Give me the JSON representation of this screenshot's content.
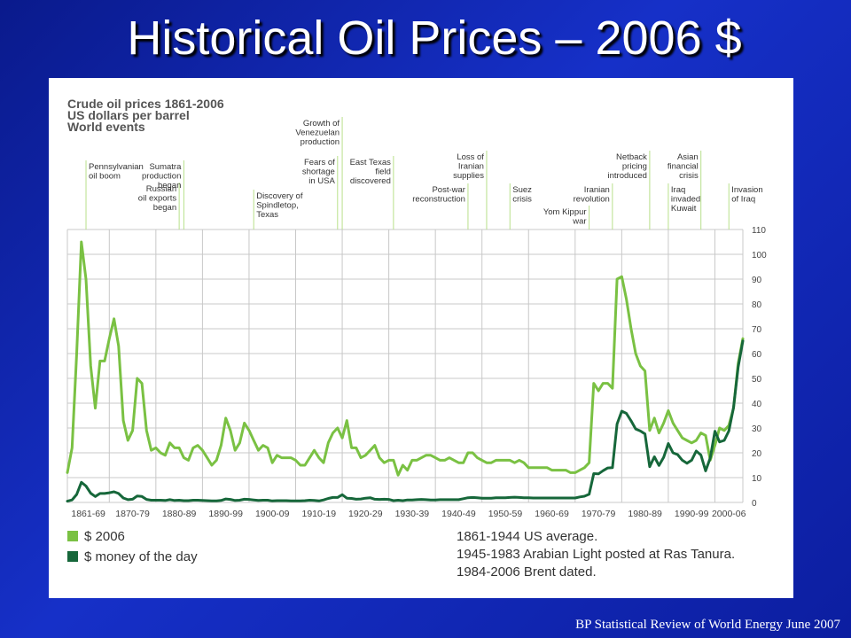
{
  "slide": {
    "title": "Historical Oil Prices – 2006 $",
    "footer": "BP Statistical Review of World Energy June 2007"
  },
  "chart_data": {
    "type": "line",
    "title_lines": [
      "Crude oil prices 1861-2006",
      "US dollars per barrel",
      "World events"
    ],
    "ylim": [
      0,
      110
    ],
    "y_ticks": [
      0,
      10,
      20,
      30,
      40,
      50,
      60,
      70,
      80,
      90,
      100,
      110
    ],
    "x_range": [
      1861,
      2006
    ],
    "x_tick_labels": [
      "1861-69",
      "1870-79",
      "1880-89",
      "1890-99",
      "1900-09",
      "1910-19",
      "1920-29",
      "1930-39",
      "1940-49",
      "1950-59",
      "1960-69",
      "1970-79",
      "1980-89",
      "1990-99",
      "2000-06"
    ],
    "series": [
      {
        "name": "$ 2006",
        "color": "#7ac143",
        "x": [
          1861,
          1862,
          1863,
          1864,
          1865,
          1866,
          1867,
          1868,
          1869,
          1870,
          1871,
          1872,
          1873,
          1874,
          1875,
          1876,
          1877,
          1878,
          1879,
          1880,
          1881,
          1882,
          1883,
          1884,
          1885,
          1886,
          1887,
          1888,
          1889,
          1890,
          1891,
          1892,
          1893,
          1894,
          1895,
          1896,
          1897,
          1898,
          1899,
          1900,
          1901,
          1902,
          1903,
          1904,
          1905,
          1906,
          1907,
          1908,
          1909,
          1910,
          1911,
          1912,
          1913,
          1914,
          1915,
          1916,
          1917,
          1918,
          1919,
          1920,
          1921,
          1922,
          1923,
          1924,
          1925,
          1926,
          1927,
          1928,
          1929,
          1930,
          1931,
          1932,
          1933,
          1934,
          1935,
          1936,
          1937,
          1938,
          1939,
          1940,
          1941,
          1942,
          1943,
          1944,
          1945,
          1946,
          1947,
          1948,
          1949,
          1950,
          1951,
          1952,
          1953,
          1954,
          1955,
          1956,
          1957,
          1958,
          1959,
          1960,
          1961,
          1962,
          1963,
          1964,
          1965,
          1966,
          1967,
          1968,
          1969,
          1970,
          1971,
          1972,
          1973,
          1974,
          1975,
          1976,
          1977,
          1978,
          1979,
          1980,
          1981,
          1982,
          1983,
          1984,
          1985,
          1986,
          1987,
          1988,
          1989,
          1990,
          1991,
          1992,
          1993,
          1994,
          1995,
          1996,
          1997,
          1998,
          1999,
          2000,
          2001,
          2002,
          2003,
          2004,
          2005,
          2006
        ],
        "values": [
          12,
          22,
          60,
          105,
          90,
          55,
          38,
          57,
          57,
          66,
          74,
          63,
          33,
          25,
          29,
          50,
          48,
          29,
          21,
          22,
          20,
          19,
          24,
          22,
          22,
          18,
          17,
          22,
          23,
          21,
          18,
          15,
          17,
          23,
          34,
          29,
          21,
          24,
          32,
          29,
          25,
          21,
          23,
          22,
          16,
          19,
          18,
          18,
          18,
          17,
          15,
          15,
          18,
          21,
          18,
          16,
          24,
          28,
          30,
          26,
          33,
          22,
          22,
          18,
          19,
          21,
          23,
          18,
          16,
          17,
          17,
          11,
          15,
          13,
          17,
          17,
          18,
          19,
          19,
          18,
          17,
          17,
          18,
          17,
          16,
          16,
          20,
          20,
          18,
          17,
          16,
          16,
          17,
          17,
          17,
          17,
          16,
          17,
          16,
          14,
          14,
          14,
          14,
          14,
          13,
          13,
          13,
          13,
          12,
          12,
          13,
          14,
          16,
          48,
          45,
          48,
          48,
          46,
          90,
          91,
          82,
          70,
          60,
          55,
          53,
          29,
          34,
          28,
          32,
          37,
          32,
          29,
          26,
          25,
          24,
          25,
          28,
          27,
          17,
          23,
          30,
          29,
          31,
          38,
          56,
          66
        ]
      },
      {
        "name": "$ money of the day",
        "color": "#16673a",
        "x": [
          1861,
          1862,
          1863,
          1864,
          1865,
          1866,
          1867,
          1868,
          1869,
          1870,
          1871,
          1872,
          1873,
          1874,
          1875,
          1876,
          1877,
          1878,
          1879,
          1880,
          1881,
          1882,
          1883,
          1884,
          1885,
          1886,
          1887,
          1888,
          1889,
          1890,
          1891,
          1892,
          1893,
          1894,
          1895,
          1896,
          1897,
          1898,
          1899,
          1900,
          1901,
          1902,
          1903,
          1904,
          1905,
          1906,
          1907,
          1908,
          1909,
          1910,
          1911,
          1912,
          1913,
          1914,
          1915,
          1916,
          1917,
          1918,
          1919,
          1920,
          1921,
          1922,
          1923,
          1924,
          1925,
          1926,
          1927,
          1928,
          1929,
          1930,
          1931,
          1932,
          1933,
          1934,
          1935,
          1936,
          1937,
          1938,
          1939,
          1940,
          1941,
          1942,
          1943,
          1944,
          1945,
          1946,
          1947,
          1948,
          1949,
          1950,
          1951,
          1952,
          1953,
          1954,
          1955,
          1956,
          1957,
          1958,
          1959,
          1960,
          1961,
          1962,
          1963,
          1964,
          1965,
          1966,
          1967,
          1968,
          1969,
          1970,
          1971,
          1972,
          1973,
          1974,
          1975,
          1976,
          1977,
          1978,
          1979,
          1980,
          1981,
          1982,
          1983,
          1984,
          1985,
          1986,
          1987,
          1988,
          1989,
          1990,
          1991,
          1992,
          1993,
          1994,
          1995,
          1996,
          1997,
          1998,
          1999,
          2000,
          2001,
          2002,
          2003,
          2004,
          2005,
          2006
        ],
        "values": [
          0.5,
          1,
          3.2,
          8.1,
          6.6,
          3.7,
          2.4,
          3.6,
          3.6,
          3.9,
          4.3,
          3.6,
          1.8,
          1.1,
          1.3,
          2.6,
          2.4,
          1.2,
          0.9,
          0.9,
          0.9,
          0.8,
          1.1,
          0.8,
          0.9,
          0.7,
          0.7,
          0.9,
          0.9,
          0.8,
          0.7,
          0.6,
          0.6,
          0.8,
          1.4,
          1.2,
          0.8,
          0.9,
          1.3,
          1.2,
          1,
          0.8,
          0.9,
          0.9,
          0.6,
          0.7,
          0.7,
          0.7,
          0.6,
          0.6,
          0.6,
          0.7,
          0.9,
          0.8,
          0.6,
          1,
          1.6,
          2,
          2,
          3.1,
          1.7,
          1.6,
          1.3,
          1.4,
          1.7,
          1.9,
          1.3,
          1.2,
          1.3,
          1.2,
          0.7,
          0.9,
          0.7,
          1,
          1,
          1.1,
          1.2,
          1.1,
          1,
          1,
          1.1,
          1.1,
          1.1,
          1.1,
          1.1,
          1.5,
          1.9,
          2,
          1.9,
          1.7,
          1.7,
          1.7,
          1.9,
          1.9,
          1.9,
          2,
          2.1,
          2,
          1.9,
          1.9,
          1.8,
          1.8,
          1.8,
          1.8,
          1.8,
          1.8,
          1.8,
          1.8,
          1.8,
          1.8,
          2.2,
          2.5,
          3.3,
          11.6,
          11.5,
          12.8,
          13.9,
          14,
          31.6,
          36.8,
          35.9,
          32.9,
          29.6,
          28.8,
          27.6,
          14.4,
          18.4,
          14.9,
          18.2,
          23.7,
          20,
          19.3,
          17,
          15.8,
          17,
          20.7,
          19.1,
          12.7,
          17.9,
          28.7,
          24.4,
          25,
          28.8,
          38.3,
          54.5,
          65.1
        ]
      }
    ],
    "events": [
      {
        "label": "Pennsylvanian\noil boom",
        "year": 1865,
        "top": 95,
        "align": "left"
      },
      {
        "label": "Russian\noil exports\nbegan",
        "year": 1885,
        "top": 120,
        "align": "right"
      },
      {
        "label": "Sumatra\nproduction\nbegan",
        "year": 1886,
        "top": 95,
        "align": "right",
        "line_side": "right"
      },
      {
        "label": "Discovery of\nSpindletop,\nTexas",
        "year": 1901,
        "top": 128,
        "align": "left"
      },
      {
        "label": "Growth of\nVenezuelan\nproduction",
        "year": 1920,
        "top": 46,
        "align": "right",
        "line_side": "right"
      },
      {
        "label": "Fears of\nshortage\nin USA",
        "year": 1919,
        "top": 90,
        "align": "right",
        "line_side": "right"
      },
      {
        "label": "East Texas\nfield\ndiscovered",
        "year": 1931,
        "top": 90,
        "align": "right",
        "line_side": "right"
      },
      {
        "label": "Post-war\nreconstruction",
        "year": 1947,
        "top": 121,
        "align": "right"
      },
      {
        "label": "Loss of\nIranian\nsupplies",
        "year": 1951,
        "top": 84,
        "align": "right",
        "line_side": "right"
      },
      {
        "label": "Suez\ncrisis",
        "year": 1956,
        "top": 121,
        "align": "left"
      },
      {
        "label": "Yom Kippur\nwar",
        "year": 1973,
        "top": 146,
        "align": "right",
        "line_side": "right"
      },
      {
        "label": "Iranian\nrevolution",
        "year": 1978,
        "top": 121,
        "align": "right"
      },
      {
        "label": "Netback\npricing\nintroduced",
        "year": 1986,
        "top": 84,
        "align": "right",
        "line_side": "right"
      },
      {
        "label": "Asian\nfinancial\ncrisis",
        "year": 1997,
        "top": 84,
        "align": "right"
      },
      {
        "label": "Iraq\ninvaded\nKuwait",
        "year": 1990,
        "top": 121,
        "align": "left"
      },
      {
        "label": "Invasion\nof Iraq",
        "year": 2003,
        "top": 121,
        "align": "left"
      }
    ],
    "legend": [
      {
        "label": "$ 2006",
        "color": "#7ac143"
      },
      {
        "label": "$ money of the day",
        "color": "#16673a"
      }
    ],
    "notes": [
      "1861-1944 US average.",
      "1945-1983 Arabian Light posted at Ras Tanura.",
      "1984-2006 Brent dated."
    ],
    "grid": true
  }
}
